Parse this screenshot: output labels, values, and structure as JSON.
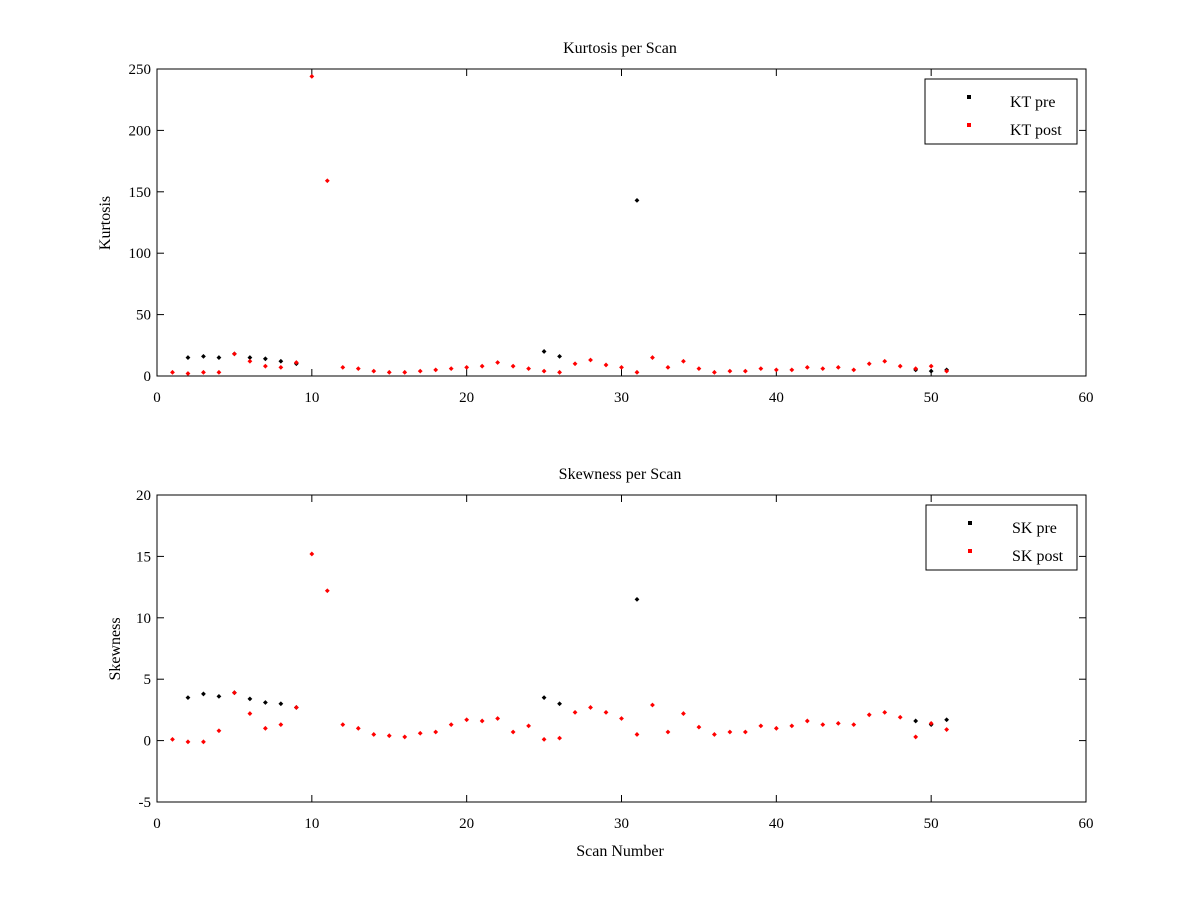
{
  "figure": {
    "background": "#ffffff",
    "axes_color": "#000000"
  },
  "chart_data": [
    {
      "type": "scatter",
      "title": "Kurtosis per Scan",
      "xlabel": "",
      "ylabel": "Kurtosis",
      "xlim": [
        0,
        60
      ],
      "ylim": [
        0,
        250
      ],
      "xticks": [
        0,
        10,
        20,
        30,
        40,
        50,
        60
      ],
      "yticks": [
        0,
        50,
        100,
        150,
        200,
        250
      ],
      "grid": false,
      "legend_position": "top-right",
      "series": [
        {
          "name": "KT pre",
          "color": "#000000",
          "points": [
            [
              2,
              15
            ],
            [
              3,
              16
            ],
            [
              4,
              15
            ],
            [
              5,
              18
            ],
            [
              6,
              15
            ],
            [
              7,
              14
            ],
            [
              8,
              12
            ],
            [
              9,
              10
            ],
            [
              25,
              20
            ],
            [
              26,
              16
            ],
            [
              31,
              143
            ],
            [
              49,
              5
            ],
            [
              50,
              4
            ],
            [
              51,
              5
            ]
          ]
        },
        {
          "name": "KT post",
          "color": "#ff0000",
          "points": [
            [
              1,
              3
            ],
            [
              2,
              2
            ],
            [
              3,
              3
            ],
            [
              4,
              3
            ],
            [
              5,
              18
            ],
            [
              6,
              12
            ],
            [
              7,
              8
            ],
            [
              8,
              7
            ],
            [
              9,
              11
            ],
            [
              10,
              244
            ],
            [
              11,
              159
            ],
            [
              12,
              7
            ],
            [
              13,
              6
            ],
            [
              14,
              4
            ],
            [
              15,
              3
            ],
            [
              16,
              3
            ],
            [
              17,
              4
            ],
            [
              18,
              5
            ],
            [
              19,
              6
            ],
            [
              20,
              7
            ],
            [
              21,
              8
            ],
            [
              22,
              11
            ],
            [
              23,
              8
            ],
            [
              24,
              6
            ],
            [
              25,
              4
            ],
            [
              26,
              3
            ],
            [
              27,
              10
            ],
            [
              28,
              13
            ],
            [
              29,
              9
            ],
            [
              30,
              7
            ],
            [
              31,
              3
            ],
            [
              32,
              15
            ],
            [
              33,
              7
            ],
            [
              34,
              12
            ],
            [
              35,
              6
            ],
            [
              36,
              3
            ],
            [
              37,
              4
            ],
            [
              38,
              4
            ],
            [
              39,
              6
            ],
            [
              40,
              5
            ],
            [
              41,
              5
            ],
            [
              42,
              7
            ],
            [
              43,
              6
            ],
            [
              44,
              7
            ],
            [
              45,
              5
            ],
            [
              46,
              10
            ],
            [
              47,
              12
            ],
            [
              48,
              8
            ],
            [
              49,
              6
            ],
            [
              50,
              8
            ],
            [
              51,
              4
            ]
          ]
        }
      ]
    },
    {
      "type": "scatter",
      "title": "Skewness per Scan",
      "xlabel": "Scan Number",
      "ylabel": "Skewness",
      "xlim": [
        0,
        60
      ],
      "ylim": [
        -5,
        20
      ],
      "xticks": [
        0,
        10,
        20,
        30,
        40,
        50,
        60
      ],
      "yticks": [
        -5,
        0,
        5,
        10,
        15,
        20
      ],
      "grid": false,
      "legend_position": "top-right",
      "series": [
        {
          "name": "SK pre",
          "color": "#000000",
          "points": [
            [
              2,
              3.5
            ],
            [
              3,
              3.8
            ],
            [
              4,
              3.6
            ],
            [
              5,
              3.9
            ],
            [
              6,
              3.4
            ],
            [
              7,
              3.1
            ],
            [
              8,
              3.0
            ],
            [
              9,
              2.7
            ],
            [
              25,
              3.5
            ],
            [
              26,
              3.0
            ],
            [
              31,
              11.5
            ],
            [
              49,
              1.6
            ],
            [
              50,
              1.3
            ],
            [
              51,
              1.7
            ]
          ]
        },
        {
          "name": "SK post",
          "color": "#ff0000",
          "points": [
            [
              1,
              0.1
            ],
            [
              2,
              -0.1
            ],
            [
              3,
              -0.1
            ],
            [
              4,
              0.8
            ],
            [
              5,
              3.9
            ],
            [
              6,
              2.2
            ],
            [
              7,
              1.0
            ],
            [
              8,
              1.3
            ],
            [
              9,
              2.7
            ],
            [
              10,
              15.2
            ],
            [
              11,
              12.2
            ],
            [
              12,
              1.3
            ],
            [
              13,
              1.0
            ],
            [
              14,
              0.5
            ],
            [
              15,
              0.4
            ],
            [
              16,
              0.3
            ],
            [
              17,
              0.6
            ],
            [
              18,
              0.7
            ],
            [
              19,
              1.3
            ],
            [
              20,
              1.7
            ],
            [
              21,
              1.6
            ],
            [
              22,
              1.8
            ],
            [
              23,
              0.7
            ],
            [
              24,
              1.2
            ],
            [
              25,
              0.1
            ],
            [
              26,
              0.2
            ],
            [
              27,
              2.3
            ],
            [
              28,
              2.7
            ],
            [
              29,
              2.3
            ],
            [
              30,
              1.8
            ],
            [
              31,
              0.5
            ],
            [
              32,
              2.9
            ],
            [
              33,
              0.7
            ],
            [
              34,
              2.2
            ],
            [
              35,
              1.1
            ],
            [
              36,
              0.5
            ],
            [
              37,
              0.7
            ],
            [
              38,
              0.7
            ],
            [
              39,
              1.2
            ],
            [
              40,
              1.0
            ],
            [
              41,
              1.2
            ],
            [
              42,
              1.6
            ],
            [
              43,
              1.3
            ],
            [
              44,
              1.4
            ],
            [
              45,
              1.3
            ],
            [
              46,
              2.1
            ],
            [
              47,
              2.3
            ],
            [
              48,
              1.9
            ],
            [
              49,
              0.3
            ],
            [
              50,
              1.4
            ],
            [
              51,
              0.9
            ]
          ]
        }
      ]
    }
  ]
}
